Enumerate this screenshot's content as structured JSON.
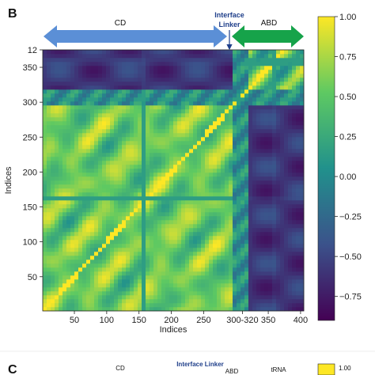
{
  "chart_data": {
    "type": "heatmap",
    "panel_label": "B",
    "xlabel": "Indices",
    "ylabel": "Indices",
    "xlim": [
      1,
      405
    ],
    "ylim": [
      1,
      375
    ],
    "x_ticks": [
      "50",
      "100",
      "150",
      "200",
      "250",
      "300-320",
      "350",
      "400"
    ],
    "y_ticks": [
      "12",
      "350",
      "300",
      "250",
      "200",
      "150",
      "100",
      "50"
    ],
    "colorbar": {
      "min": -0.9,
      "max": 1.0,
      "ticks": [
        "1.00",
        "0.75",
        "0.50",
        "0.25",
        "0.00",
        "−0.25",
        "−0.50",
        "−0.75"
      ],
      "colors": [
        "#440154",
        "#3b528b",
        "#21918c",
        "#5ec962",
        "#fde725"
      ]
    },
    "domains": [
      {
        "name": "CD",
        "color": "#5b8fd6",
        "start": 1,
        "end": 285
      },
      {
        "name": "Interface Linker",
        "color": "#1f3f8a",
        "start": 300,
        "end": 320
      },
      {
        "name": "ABD",
        "color": "#16a34a",
        "start": 320,
        "end": 405
      }
    ]
  },
  "next_panel": {
    "label": "C",
    "domain_labels": [
      "CD",
      "Interface Linker",
      "ABD",
      "tRNA"
    ],
    "colorbar_top": "1.00"
  }
}
